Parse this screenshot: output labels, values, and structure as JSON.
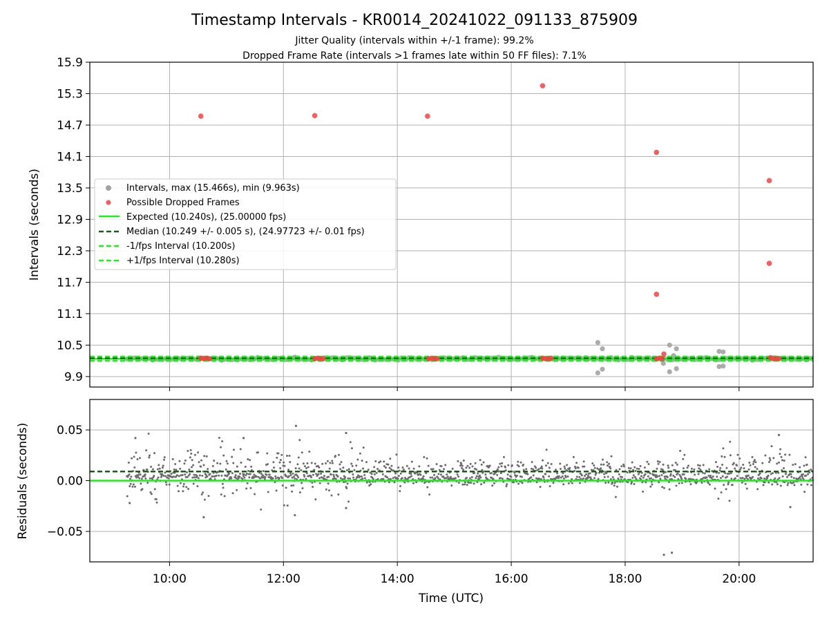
{
  "chart_data": [
    {
      "type": "scatter",
      "title": "Timestamp Intervals - KR0014_20241022_091133_875909",
      "subtitle_1": "Jitter Quality (intervals within +/-1 frame): 99.2%",
      "subtitle_2": "Dropped Frame Rate (intervals >1 frames late within 50 FF files): 7.1%",
      "ylabel": "Intervals (seconds)",
      "xlim_hours": [
        8.6,
        21.3
      ],
      "ylim": [
        9.7,
        15.9
      ],
      "y_ticks": [
        "15.9",
        "15.3",
        "14.7",
        "14.1",
        "13.5",
        "12.9",
        "12.3",
        "11.7",
        "11.1",
        "10.5",
        "9.9"
      ],
      "grid": true,
      "legend_position": "center-left",
      "legend": [
        "Intervals, max (15.466s), min (9.963s)",
        "Possible Dropped Frames",
        "Expected (10.240s), (25.00000 fps)",
        "Median (10.249 +/- 0.005 s), (24.97723 +/- 0.01 fps)",
        "-1/fps Interval (10.200s)",
        "+1/fps Interval (10.280s)"
      ],
      "expected_interval": 10.24,
      "median_interval": 10.249,
      "minus_1fps_interval": 10.2,
      "plus_1fps_interval": 10.28,
      "series": [
        {
          "name": "Possible Dropped Frames",
          "color": "#ef4444",
          "points": [
            {
              "x": 10.55,
              "y": 14.87
            },
            {
              "x": 12.55,
              "y": 14.88
            },
            {
              "x": 14.53,
              "y": 14.87
            },
            {
              "x": 16.55,
              "y": 15.45
            },
            {
              "x": 18.55,
              "y": 14.18
            },
            {
              "x": 18.55,
              "y": 11.47
            },
            {
              "x": 20.53,
              "y": 13.64
            },
            {
              "x": 20.53,
              "y": 12.06
            },
            {
              "x": 10.55,
              "y": 10.25
            },
            {
              "x": 10.6,
              "y": 10.24
            },
            {
              "x": 10.65,
              "y": 10.25
            },
            {
              "x": 10.7,
              "y": 10.24
            },
            {
              "x": 12.55,
              "y": 10.24
            },
            {
              "x": 12.6,
              "y": 10.25
            },
            {
              "x": 12.65,
              "y": 10.24
            },
            {
              "x": 12.7,
              "y": 10.24
            },
            {
              "x": 14.55,
              "y": 10.24
            },
            {
              "x": 14.6,
              "y": 10.25
            },
            {
              "x": 14.65,
              "y": 10.24
            },
            {
              "x": 14.7,
              "y": 10.24
            },
            {
              "x": 16.55,
              "y": 10.25
            },
            {
              "x": 16.6,
              "y": 10.24
            },
            {
              "x": 16.65,
              "y": 10.24
            },
            {
              "x": 16.7,
              "y": 10.25
            },
            {
              "x": 18.55,
              "y": 10.24
            },
            {
              "x": 18.6,
              "y": 10.25
            },
            {
              "x": 18.65,
              "y": 10.24
            },
            {
              "x": 18.68,
              "y": 10.33
            },
            {
              "x": 20.55,
              "y": 10.26
            },
            {
              "x": 20.6,
              "y": 10.24
            },
            {
              "x": 20.65,
              "y": 10.24
            },
            {
              "x": 20.7,
              "y": 10.24
            }
          ]
        },
        {
          "name": "Intervals, max (15.466s), min (9.963s)",
          "color": "#a3a3a3",
          "points": [
            {
              "x": 17.52,
              "y": 10.55
            },
            {
              "x": 17.6,
              "y": 10.43
            },
            {
              "x": 17.52,
              "y": 9.97
            },
            {
              "x": 17.6,
              "y": 10.04
            },
            {
              "x": 18.67,
              "y": 10.15
            },
            {
              "x": 18.78,
              "y": 10.5
            },
            {
              "x": 18.85,
              "y": 10.3
            },
            {
              "x": 18.9,
              "y": 10.43
            },
            {
              "x": 18.78,
              "y": 9.99
            },
            {
              "x": 18.9,
              "y": 10.05
            },
            {
              "x": 19.65,
              "y": 10.38
            },
            {
              "x": 19.72,
              "y": 10.37
            },
            {
              "x": 19.65,
              "y": 10.09
            },
            {
              "x": 19.72,
              "y": 10.1
            },
            {
              "x": 12.2,
              "y": 10.27
            },
            {
              "x": 13.5,
              "y": 10.26
            }
          ],
          "band_start_x": 9.25,
          "band_end_x": 21.3,
          "band_value": 10.24
        }
      ]
    },
    {
      "type": "scatter",
      "xlabel": "Time (UTC)",
      "ylabel": "Residuals (seconds)",
      "xlim_hours": [
        8.6,
        21.3
      ],
      "ylim": [
        -0.08,
        0.08
      ],
      "x_ticks": [
        "10:00",
        "12:00",
        "14:00",
        "16:00",
        "18:00",
        "20:00"
      ],
      "y_ticks": [
        "0.05",
        "0.00",
        "−0.05"
      ],
      "grid": true,
      "expected_residual": 0.0,
      "median_residual": 0.009,
      "series": [
        {
          "name": "Residuals",
          "color": "#6b6b6b",
          "x_start": 9.25,
          "x_end": 21.3,
          "center": 0.008,
          "spread": 0.008,
          "outliers": [
            {
              "x": 12.22,
              "y": 0.054
            },
            {
              "x": 13.1,
              "y": 0.047
            },
            {
              "x": 20.7,
              "y": 0.045
            },
            {
              "x": 12.2,
              "y": -0.034
            },
            {
              "x": 10.6,
              "y": -0.036
            },
            {
              "x": 18.82,
              "y": -0.071
            },
            {
              "x": 18.68,
              "y": -0.073
            },
            {
              "x": 9.4,
              "y": 0.042
            },
            {
              "x": 11.3,
              "y": 0.042
            },
            {
              "x": 13.1,
              "y": -0.027
            },
            {
              "x": 9.3,
              "y": -0.022
            },
            {
              "x": 20.9,
              "y": -0.026
            }
          ]
        }
      ]
    }
  ],
  "colors": {
    "expected": "#18f018",
    "median": "#156015",
    "fps_bounds": "#18f018",
    "grid": "#b0b0b0"
  }
}
